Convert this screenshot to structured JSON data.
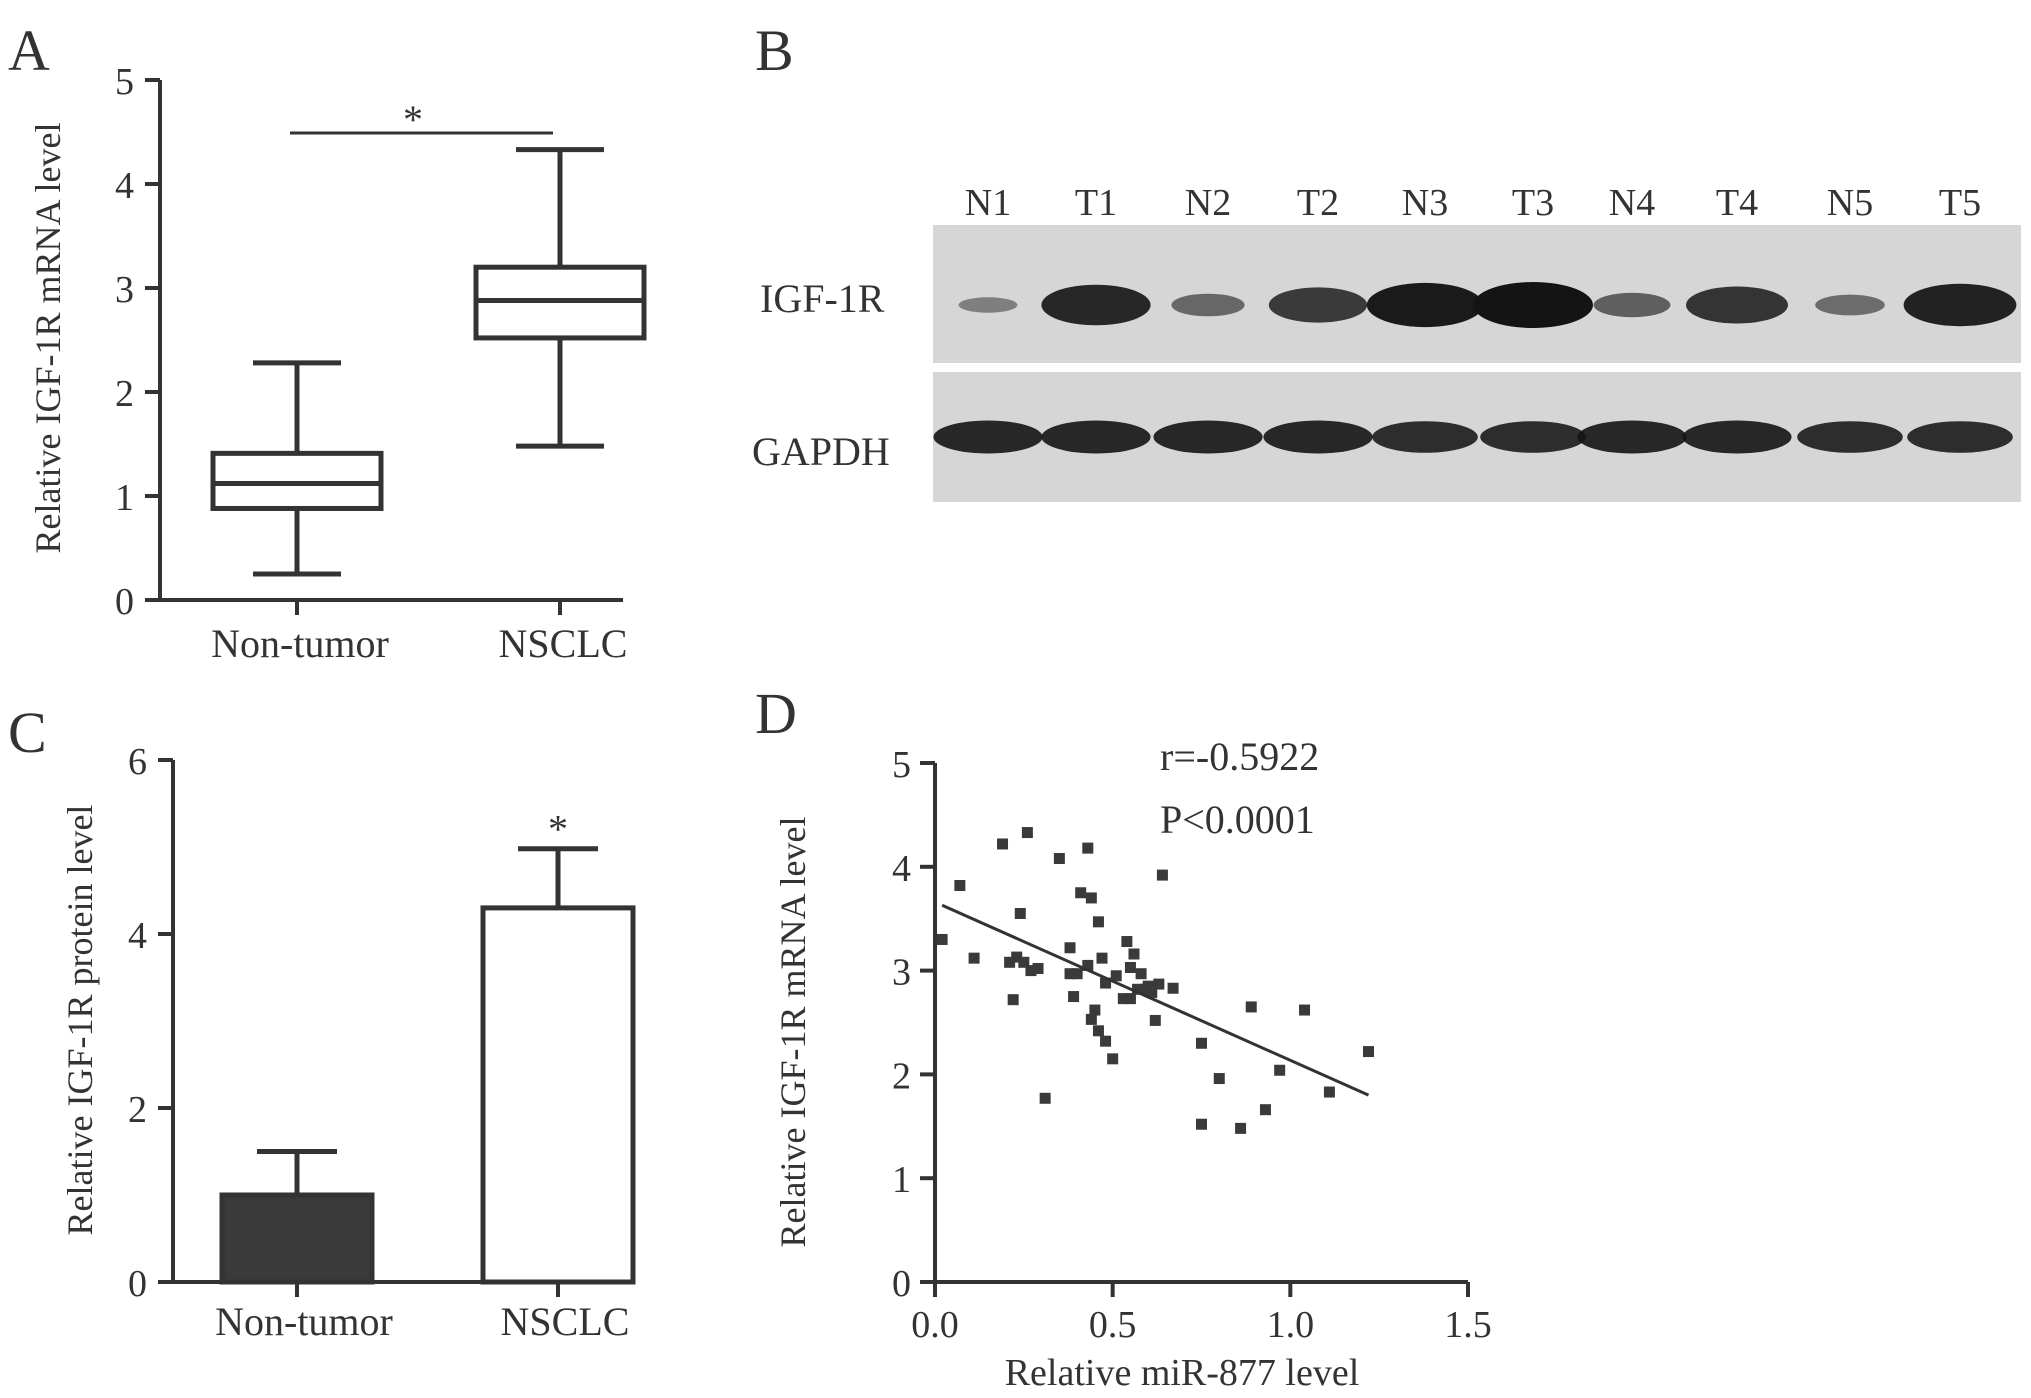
{
  "colors": {
    "ink": "#333333",
    "dark_bar": "#3a3a3a",
    "light_bar": "#ffffff",
    "blot_bg": "#d6d6d6",
    "band": "#141414"
  },
  "chart_data": [
    {
      "panel": "A",
      "type": "box",
      "categories": [
        "Non-tumor",
        "NSCLC"
      ],
      "boxes": [
        {
          "min": 0.25,
          "q1": 0.88,
          "median": 1.12,
          "q3": 1.41,
          "max": 2.28
        },
        {
          "min": 1.48,
          "q1": 2.52,
          "median": 2.88,
          "q3": 3.2,
          "max": 4.33
        }
      ],
      "ylabel": "Relative IGF-1R mRNA level",
      "ylim": [
        0,
        5
      ],
      "yticks": [
        0,
        1,
        2,
        3,
        4,
        5
      ],
      "significance": "*"
    },
    {
      "panel": "B",
      "type": "blot",
      "lanes": [
        "N1",
        "T1",
        "N2",
        "T2",
        "N3",
        "T3",
        "N4",
        "T4",
        "N5",
        "T5"
      ],
      "rows": [
        {
          "label": "IGF-1R",
          "intensity": [
            0.15,
            0.85,
            0.35,
            0.7,
            0.95,
            1.0,
            0.4,
            0.75,
            0.3,
            0.9
          ]
        },
        {
          "label": "GAPDH",
          "intensity": [
            0.85,
            0.85,
            0.85,
            0.85,
            0.8,
            0.8,
            0.85,
            0.85,
            0.8,
            0.8
          ]
        }
      ]
    },
    {
      "panel": "C",
      "type": "bar",
      "categories": [
        "Non-tumor",
        "NSCLC"
      ],
      "values": [
        1.0,
        4.3
      ],
      "errors": [
        0.5,
        0.68
      ],
      "ylabel": "Relative IGF-1R protein level",
      "ylim": [
        0,
        6
      ],
      "yticks": [
        0,
        2,
        4,
        6
      ],
      "significance": "*"
    },
    {
      "panel": "D",
      "type": "scatter",
      "xlabel": "Relative miR-877 level",
      "ylabel": "Relative IGF-1R mRNA level",
      "xlim": [
        0,
        1.5
      ],
      "ylim": [
        0,
        5
      ],
      "xticks": [
        "0.0",
        "0.5",
        "1.0",
        "1.5"
      ],
      "yticks": [
        0,
        1,
        2,
        3,
        4,
        5
      ],
      "annotations": [
        "r=-0.5922",
        "P<0.0001"
      ],
      "fit_line": {
        "x": [
          0.02,
          1.22
        ],
        "y": [
          3.63,
          1.8
        ]
      },
      "points": [
        [
          0.02,
          3.3
        ],
        [
          0.07,
          3.82
        ],
        [
          0.11,
          3.12
        ],
        [
          0.19,
          4.22
        ],
        [
          0.21,
          3.08
        ],
        [
          0.22,
          2.72
        ],
        [
          0.23,
          3.13
        ],
        [
          0.24,
          3.55
        ],
        [
          0.25,
          3.08
        ],
        [
          0.26,
          4.33
        ],
        [
          0.27,
          3.0
        ],
        [
          0.29,
          3.02
        ],
        [
          0.31,
          1.77
        ],
        [
          0.35,
          4.08
        ],
        [
          0.38,
          3.22
        ],
        [
          0.38,
          2.97
        ],
        [
          0.39,
          2.75
        ],
        [
          0.4,
          2.97
        ],
        [
          0.41,
          3.75
        ],
        [
          0.43,
          4.18
        ],
        [
          0.43,
          3.05
        ],
        [
          0.44,
          3.7
        ],
        [
          0.44,
          2.53
        ],
        [
          0.45,
          2.62
        ],
        [
          0.46,
          3.47
        ],
        [
          0.46,
          2.42
        ],
        [
          0.47,
          3.12
        ],
        [
          0.48,
          2.32
        ],
        [
          0.48,
          2.88
        ],
        [
          0.5,
          2.15
        ],
        [
          0.51,
          2.95
        ],
        [
          0.53,
          2.73
        ],
        [
          0.54,
          3.28
        ],
        [
          0.55,
          3.03
        ],
        [
          0.55,
          2.73
        ],
        [
          0.56,
          3.16
        ],
        [
          0.57,
          2.82
        ],
        [
          0.58,
          2.97
        ],
        [
          0.59,
          2.82
        ],
        [
          0.6,
          2.85
        ],
        [
          0.61,
          2.79
        ],
        [
          0.62,
          2.52
        ],
        [
          0.63,
          2.87
        ],
        [
          0.64,
          3.92
        ],
        [
          0.67,
          2.83
        ],
        [
          0.75,
          2.3
        ],
        [
          0.75,
          1.52
        ],
        [
          0.8,
          1.96
        ],
        [
          0.86,
          1.48
        ],
        [
          0.89,
          2.65
        ],
        [
          0.93,
          1.66
        ],
        [
          0.97,
          2.04
        ],
        [
          1.04,
          2.62
        ],
        [
          1.11,
          1.83
        ],
        [
          1.22,
          2.22
        ]
      ]
    }
  ]
}
